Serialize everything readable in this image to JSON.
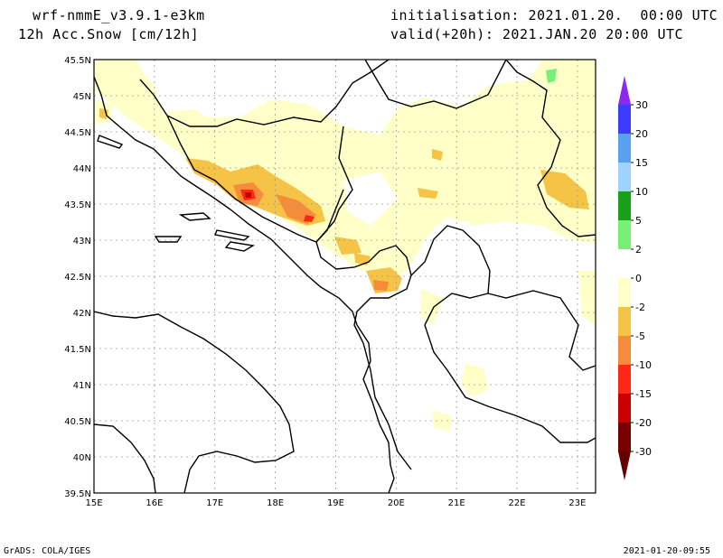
{
  "header": {
    "model": "wrf-nmmE_v3.9.1-e3km",
    "variable": "12h Acc.Snow [cm/12h]",
    "init": "initialisation: 2021.01.20.  00:00 UTC",
    "valid": "valid(+20h): 2021.JAN.20 20:00 UTC"
  },
  "map": {
    "lat_labels": [
      "45.5N",
      "45N",
      "44.5N",
      "44N",
      "43.5N",
      "43N",
      "42.5N",
      "42N",
      "41.5N",
      "41N",
      "40.5N",
      "40N",
      "39.5N"
    ],
    "lon_labels": [
      "15E",
      "16E",
      "17E",
      "18E",
      "19E",
      "20E",
      "21E",
      "22E",
      "23E"
    ],
    "lat_range": [
      39.5,
      45.5
    ],
    "lon_range": [
      15.0,
      23.3
    ]
  },
  "colorbar": {
    "labels": [
      "30",
      "20",
      "15",
      "10",
      "5",
      "2",
      "0",
      "-2",
      "-5",
      "-10",
      "-15",
      "-20",
      "-30"
    ],
    "colors": [
      "#3c3cff",
      "#5aa0f0",
      "#a0d2ff",
      "#19a019",
      "#78f078",
      "#ffffff",
      "#ffffc8",
      "#f5c346",
      "#f58c3c",
      "#ff2814",
      "#c80000",
      "#780000"
    ],
    "top_arrow_color": "#8c28f0",
    "bottom_arrow_color": "#640000"
  },
  "footer": {
    "credit": "GrADS: COLA/IGES",
    "timestamp": "2021-01-20-09:55"
  }
}
